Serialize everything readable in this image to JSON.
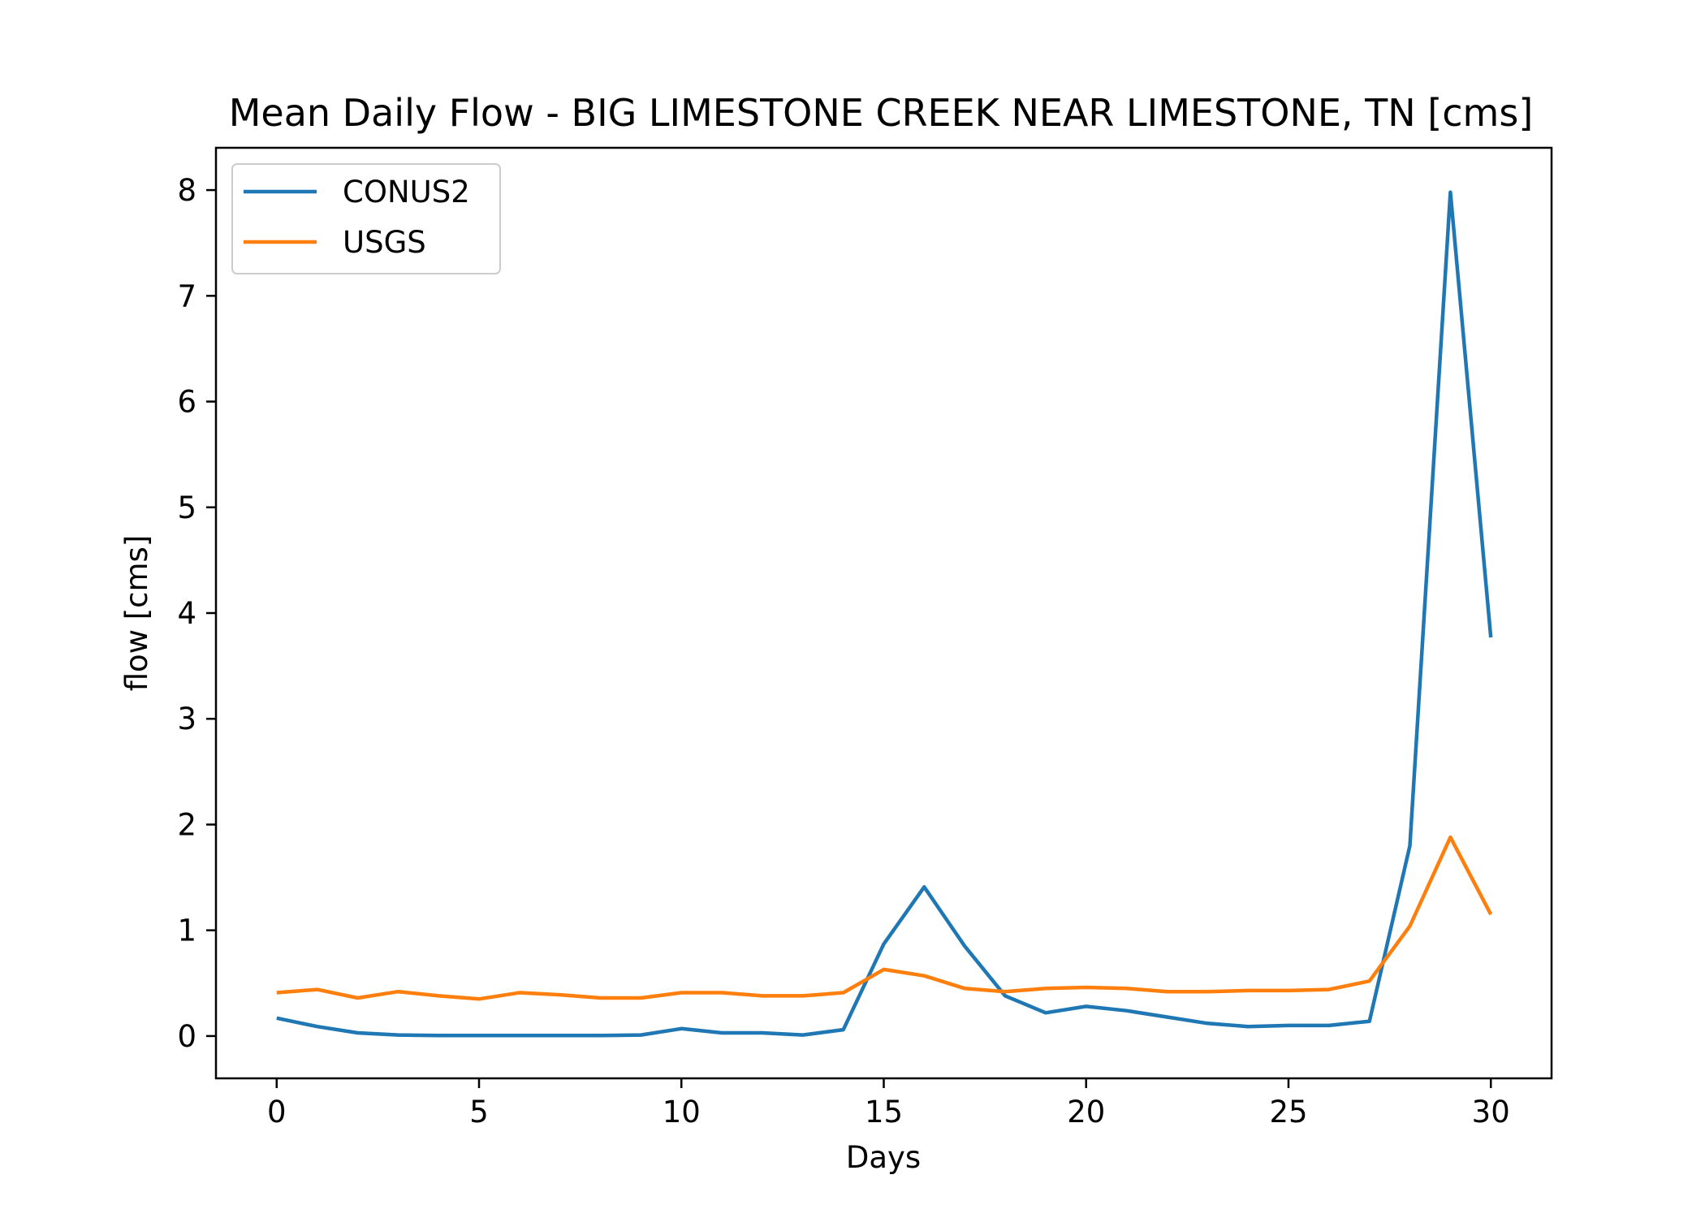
{
  "chart_data": {
    "type": "line",
    "title": "Mean Daily Flow - BIG LIMESTONE CREEK NEAR LIMESTONE, TN [cms]",
    "xlabel": "Days",
    "ylabel": "flow [cms]",
    "xlim": [
      -1.5,
      31.5
    ],
    "ylim": [
      -0.4,
      8.4
    ],
    "xticks": [
      0,
      5,
      10,
      15,
      20,
      25,
      30
    ],
    "yticks": [
      0,
      1,
      2,
      3,
      4,
      5,
      6,
      7,
      8
    ],
    "grid": false,
    "legend_position": "top-left",
    "x": [
      0,
      1,
      2,
      3,
      4,
      5,
      6,
      7,
      8,
      9,
      10,
      11,
      12,
      13,
      14,
      15,
      16,
      17,
      18,
      19,
      20,
      21,
      22,
      23,
      24,
      25,
      26,
      27,
      28,
      29,
      30
    ],
    "series": [
      {
        "name": "CONUS2",
        "color": "#1f77b4",
        "values": [
          0.17,
          0.09,
          0.03,
          0.01,
          0.005,
          0.005,
          0.005,
          0.005,
          0.005,
          0.01,
          0.07,
          0.03,
          0.03,
          0.01,
          0.06,
          0.87,
          1.41,
          0.85,
          0.38,
          0.22,
          0.28,
          0.24,
          0.18,
          0.12,
          0.09,
          0.1,
          0.1,
          0.14,
          1.8,
          7.98,
          3.77
        ]
      },
      {
        "name": "USGS",
        "color": "#ff7f0e",
        "values": [
          0.41,
          0.44,
          0.36,
          0.42,
          0.38,
          0.35,
          0.41,
          0.39,
          0.36,
          0.36,
          0.41,
          0.41,
          0.38,
          0.38,
          0.41,
          0.63,
          0.57,
          0.45,
          0.42,
          0.45,
          0.46,
          0.45,
          0.42,
          0.42,
          0.43,
          0.43,
          0.44,
          0.52,
          1.04,
          1.88,
          1.15
        ]
      }
    ]
  }
}
